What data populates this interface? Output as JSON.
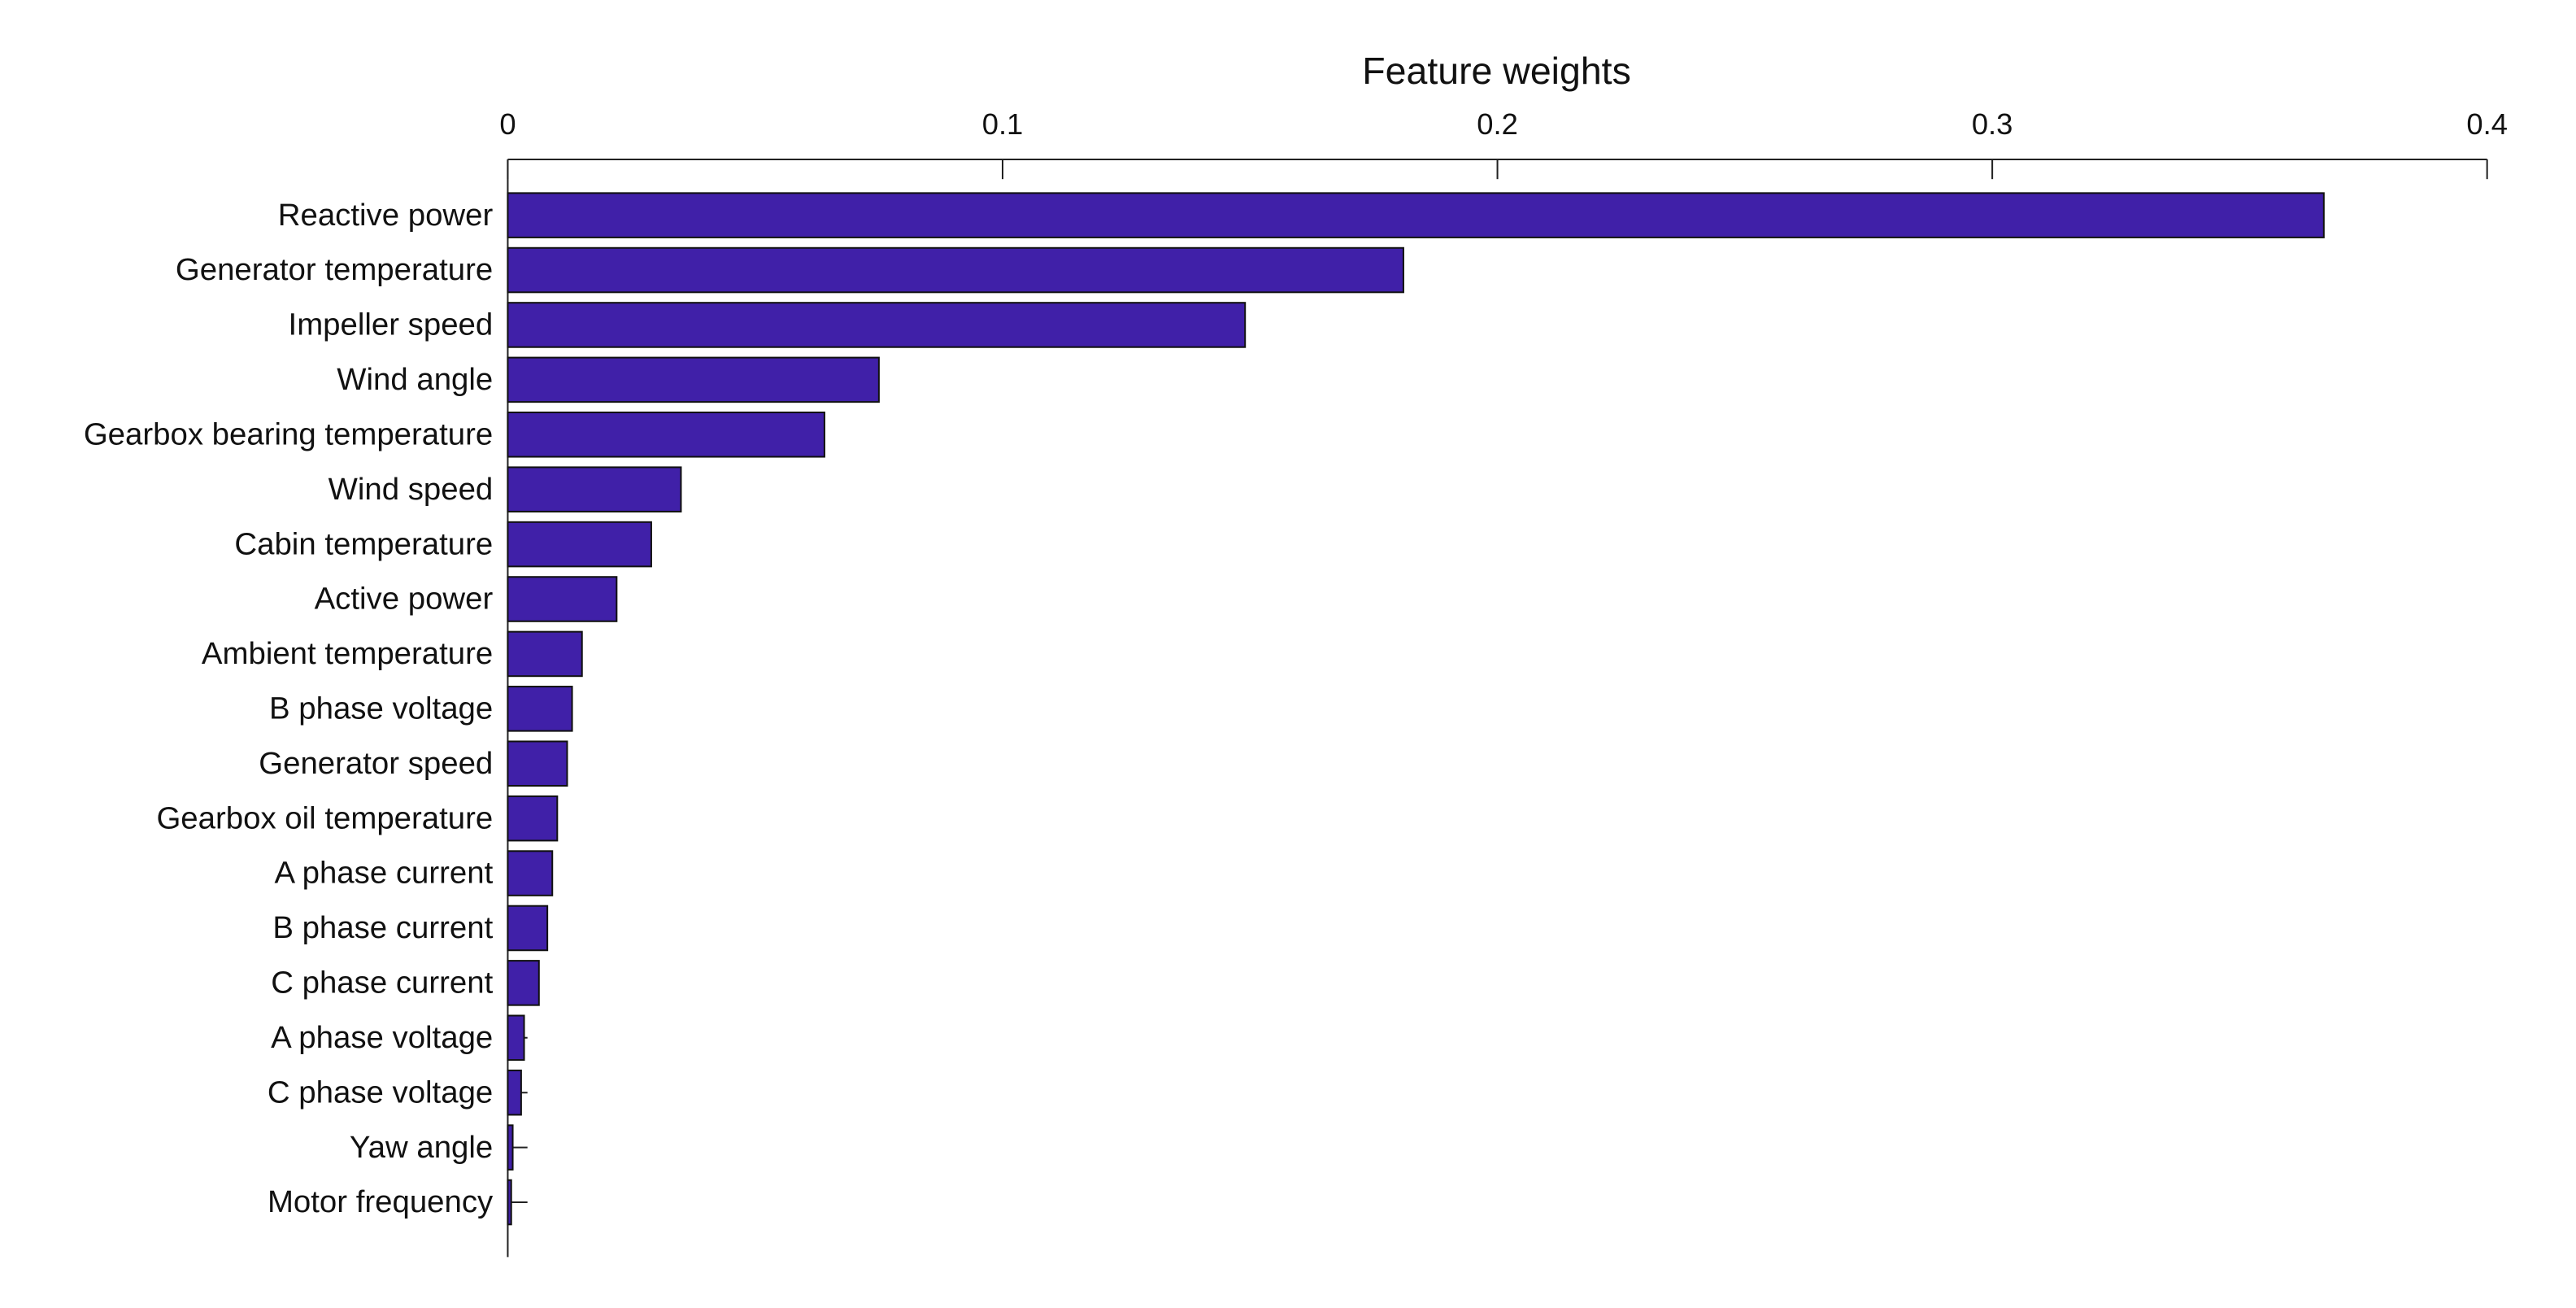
{
  "chart_data": {
    "type": "barh",
    "title": "Feature weights",
    "categories": [
      "Reactive power",
      "Generator temperature",
      "Impeller speed",
      "Wind angle",
      "Gearbox bearing temperature",
      "Wind speed",
      "Cabin temperature",
      "Active power",
      "Ambient temperature",
      "B phase voltage",
      "Generator speed",
      "Gearbox oil temperature",
      "A phase current",
      "B phase current",
      "C phase current",
      "A phase voltage",
      "C phase voltage",
      "Yaw angle",
      "Motor frequency"
    ],
    "values": [
      0.367,
      0.181,
      0.149,
      0.075,
      0.064,
      0.035,
      0.029,
      0.022,
      0.015,
      0.013,
      0.012,
      0.01,
      0.009,
      0.008,
      0.0063,
      0.0033,
      0.0027,
      0.001,
      0.0007
    ],
    "color": "#4020a8",
    "xlim": [
      0,
      0.4
    ],
    "xticks": [
      0,
      0.1,
      0.2,
      0.3,
      0.4
    ]
  }
}
